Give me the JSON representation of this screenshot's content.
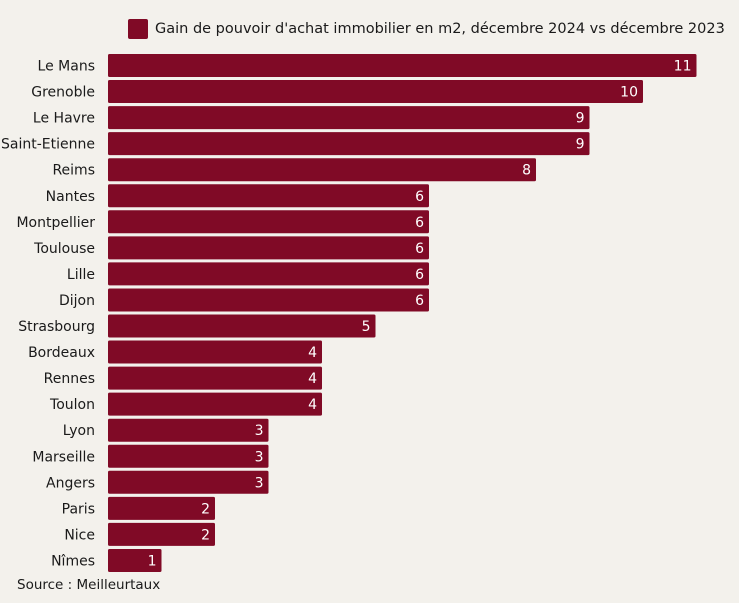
{
  "colors": {
    "bar": "#800a26",
    "background": "#f3f1ec",
    "value_label": "#ffffff"
  },
  "source": "Source : Meilleurtaux",
  "chart_data": {
    "type": "bar",
    "orientation": "horizontal",
    "title": "",
    "xlabel": "",
    "ylabel": "",
    "xlim": [
      0,
      11
    ],
    "grid": false,
    "legend_position": "top",
    "categories": [
      "Le Mans",
      "Grenoble",
      "Le Havre",
      "Saint-Etienne",
      "Reims",
      "Nantes",
      "Montpellier",
      "Toulouse",
      "Lille",
      "Dijon",
      "Strasbourg",
      "Bordeaux",
      "Rennes",
      "Toulon",
      "Lyon",
      "Marseille",
      "Angers",
      "Paris",
      "Nice",
      "Nîmes"
    ],
    "series": [
      {
        "name": "Gain de pouvoir d'achat immobilier en m2, décembre 2024 vs décembre 2023",
        "color": "#800a26",
        "values": [
          11,
          10,
          9,
          9,
          8,
          6,
          6,
          6,
          6,
          6,
          5,
          4,
          4,
          4,
          3,
          3,
          3,
          2,
          2,
          1
        ]
      }
    ]
  }
}
